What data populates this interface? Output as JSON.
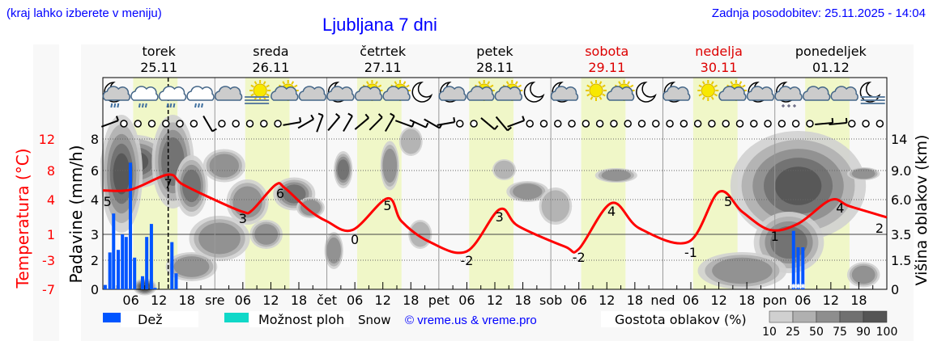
{
  "header": {
    "menu_hint": "(kraj lahko izberete v meniju)",
    "title": "Ljubljana 7 dni",
    "updated": "Zadnja posodobitev: 25.11.2025 - 14:04"
  },
  "days": [
    {
      "name": "torek",
      "date": "25.11",
      "weekend": false,
      "abbr": ""
    },
    {
      "name": "sreda",
      "date": "26.11",
      "weekend": false,
      "abbr": "sre"
    },
    {
      "name": "četrtek",
      "date": "27.11",
      "weekend": false,
      "abbr": "čet"
    },
    {
      "name": "petek",
      "date": "28.11",
      "weekend": false,
      "abbr": "pet"
    },
    {
      "name": "sobota",
      "date": "29.11",
      "weekend": true,
      "abbr": "sob"
    },
    {
      "name": "nedelja",
      "date": "30.11",
      "weekend": true,
      "abbr": "ned"
    },
    {
      "name": "ponedeljek",
      "date": "01.12",
      "weekend": false,
      "abbr": "pon"
    }
  ],
  "hour_ticks": [
    "06",
    "12",
    "18"
  ],
  "colors": {
    "temperature": "#ff0000",
    "rain": "#0055ff",
    "showers": "#10d8c8",
    "daylight": "#f0f7c8",
    "weekend": "#dd0000",
    "title": "#0000ff"
  },
  "weather_icons": [
    "moon-cloud-rain",
    "cloud-rain",
    "cloud-rain",
    "cloud-rain",
    "cloud",
    "sun-fog",
    "sun-cloud",
    "cloud",
    "moon-cloud",
    "sun-cloud",
    "sun-cloud",
    "moon",
    "moon-cloud",
    "sun-cloud",
    "sun-cloud",
    "moon",
    "moon-cloud",
    "sun",
    "sun-cloud",
    "moon",
    "moon-cloud",
    "sun",
    "sun-cloud",
    "moon-cloud",
    "moon-cloud-snow",
    "cloud",
    "cloud",
    "moon-fog"
  ],
  "wind": [
    "b:-20",
    "c",
    "c",
    "c",
    "c",
    "c",
    "c",
    "b:60",
    "c",
    "c",
    "c",
    "c",
    "c",
    "b:-10",
    "b:-30",
    "b:-70",
    "b:-50",
    "b:-60",
    "b:-40",
    "b:-45",
    "b:-60",
    "b:20",
    "b:25",
    "b:30",
    "b:-10",
    "c",
    "c",
    "b:40",
    "b:50",
    "b:-20",
    "c",
    "c",
    "c",
    "c",
    "c",
    "c",
    "c",
    "c",
    "c",
    "c",
    "c",
    "c",
    "c",
    "c",
    "c",
    "c",
    "c",
    "c",
    "c",
    "c",
    "c",
    "b:-5",
    "b:-5",
    "c",
    "c",
    "c"
  ],
  "chart_data": {
    "type": "line",
    "title": "Ljubljana 7 dni",
    "current_time_hour": 14,
    "left_axis_precip": {
      "label": "Padavine (mm/h)",
      "ticks": [
        0,
        2,
        3,
        4,
        6,
        8
      ]
    },
    "left_axis_temp": {
      "label": "Temperatura (°C)",
      "ticks": [
        -7,
        -3,
        1,
        4,
        8,
        12
      ],
      "range": [
        -7,
        12
      ]
    },
    "right_axis_cloud": {
      "label": "Višina oblakov (km)",
      "ticks": [
        "0",
        "1.5",
        "3.5",
        "6.0",
        "9.0",
        "14"
      ]
    },
    "temperature": {
      "hours": [
        0,
        6,
        14,
        17,
        24,
        30,
        32,
        37,
        39,
        44,
        48,
        53.5,
        61,
        64,
        70,
        78,
        85,
        89,
        99,
        102,
        109,
        115,
        125.5,
        132,
        137,
        143,
        149,
        156,
        160,
        168
      ],
      "values": [
        5.5,
        5.6,
        7.5,
        6.3,
        4.3,
        2.8,
        3.0,
        6.2,
        5.8,
        3.1,
        1.6,
        0.5,
        4.5,
        1.6,
        -1.0,
        -2.2,
        3.1,
        1.0,
        -1.6,
        -1.9,
        3.9,
        0.7,
        -1.0,
        5.3,
        2.8,
        0.5,
        1.3,
        4.3,
        3.5,
        2.1
      ]
    },
    "temperature_labels": [
      {
        "h": 1,
        "v": "5"
      },
      {
        "h": 14,
        "v": "7"
      },
      {
        "h": 30,
        "v": "3"
      },
      {
        "h": 38,
        "v": "6"
      },
      {
        "h": 54,
        "v": "0"
      },
      {
        "h": 61,
        "v": "5"
      },
      {
        "h": 78,
        "v": "-2"
      },
      {
        "h": 85,
        "v": "3"
      },
      {
        "h": 102,
        "v": "-2"
      },
      {
        "h": 109,
        "v": "4"
      },
      {
        "h": 126,
        "v": "-1"
      },
      {
        "h": 134,
        "v": "5"
      },
      {
        "h": 144,
        "v": "1"
      },
      {
        "h": 158,
        "v": "4"
      },
      {
        "h": 168,
        "v": "2"
      }
    ],
    "rain": {
      "hours": [
        0.5,
        1.5,
        2.3,
        3.3,
        4.2,
        5.0,
        5.9,
        6.8,
        8.5,
        9.4,
        10.4,
        11.2,
        14.8,
        15.7,
        148,
        149,
        150
      ],
      "values": [
        0.3,
        2.3,
        3.6,
        2.4,
        3.0,
        2.9,
        6.5,
        2.1,
        0.9,
        2.9,
        3.3,
        0.1,
        2.7,
        1.1,
        3.1,
        2.5,
        2.5
      ]
    },
    "snow_hours": [
      148,
      149,
      150
    ],
    "cloud_density_legend": {
      "label": "Gostota oblakov (%)",
      "levels": [
        "10",
        "25",
        "50",
        "75",
        "90",
        "100"
      ]
    }
  },
  "legend": {
    "rain": "Dež",
    "showers": "Možnost ploh",
    "snow": "Snow",
    "copyright": "© vreme.us & vreme.pro"
  }
}
